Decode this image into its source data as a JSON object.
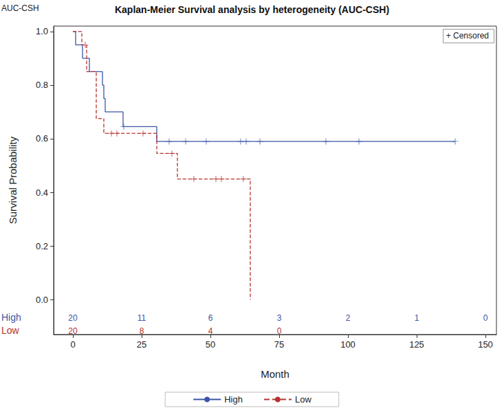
{
  "chart_data": {
    "type": "step",
    "title": "Kaplan-Meier Survival analysis by heterogeneity (AUC-CSH)",
    "subtitle": "AUC-CSH",
    "x_label": "Month",
    "y_label": "Survival Probability",
    "annotation": "+ Censored",
    "xlim": [
      -7,
      154
    ],
    "xticks": [
      0,
      25,
      50,
      75,
      100,
      125,
      150
    ],
    "ylim": [
      -0.13,
      1.02
    ],
    "yticks": [
      {
        "value": 0,
        "label": "0.0"
      },
      0.2,
      0.4,
      0.6,
      0.8,
      {
        "value": 1,
        "label": "1.0"
      }
    ],
    "grid": false,
    "legend": "bottom",
    "series": [
      {
        "name": "High",
        "color": "#3b55a6",
        "line_style": "solid",
        "marker": "plus",
        "x": [
          0,
          1,
          3.5,
          6,
          10.75,
          11.25,
          11.75,
          18.25,
          30.5,
          139
        ],
        "values": [
          1,
          0.95,
          0.9,
          0.85,
          0.8,
          0.75,
          0.7,
          0.645,
          0.59,
          0.59
        ],
        "censored": {
          "x": [
            18.5,
            35,
            41,
            48.5,
            61,
            63,
            68,
            92,
            104,
            139
          ],
          "values": [
            0.645,
            0.59,
            0.59,
            0.59,
            0.59,
            0.59,
            0.59,
            0.59,
            0.59,
            0.59
          ]
        },
        "at_risk": {
          "x": [
            0,
            25,
            50,
            75,
            100,
            125,
            150
          ],
          "values": [
            20,
            11,
            6,
            3,
            2,
            1,
            0
          ]
        }
      },
      {
        "name": "Low",
        "color": "#b5312c",
        "line_style": "dashed",
        "marker": "plus",
        "x": [
          0,
          3.25,
          5,
          8.5,
          11.25,
          30.5,
          38,
          64.5
        ],
        "values": [
          1,
          0.95,
          0.85,
          0.675,
          0.62,
          0.545,
          0.45,
          0
        ],
        "censored": {
          "x": [
            4.5,
            14,
            16,
            25.5,
            36,
            44,
            52,
            54,
            62
          ],
          "values": [
            0.95,
            0.62,
            0.62,
            0.62,
            0.545,
            0.45,
            0.45,
            0.45,
            0.45
          ]
        },
        "at_risk": {
          "x": [
            0,
            25,
            50,
            75
          ],
          "values": [
            20,
            8,
            4,
            0
          ]
        }
      }
    ]
  }
}
